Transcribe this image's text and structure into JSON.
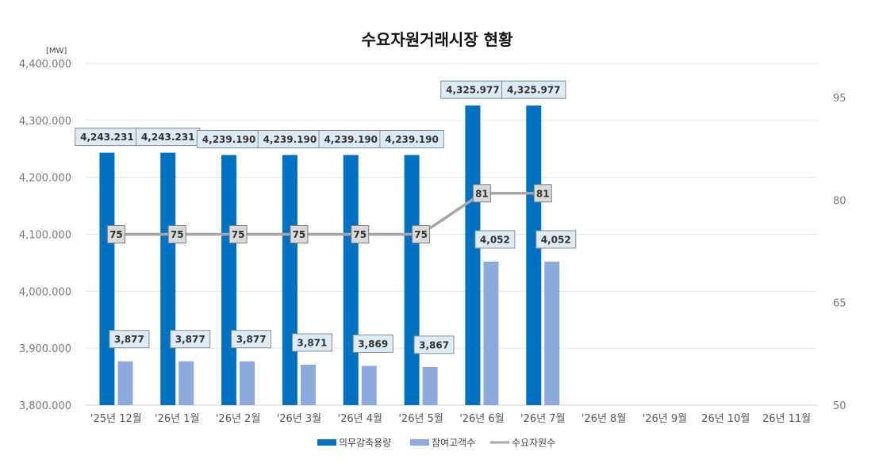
{
  "chart_data": {
    "type": "bar",
    "title": "수요자원거래시장 현황",
    "y_unit": "[MW]",
    "categories": [
      "'25년 12월",
      "'26년 1월",
      "'26년 2월",
      "'26년 3월",
      "'26년 4월",
      "'26년 5월",
      "'26년 6월",
      "'26년 7월",
      "'26년 8월",
      "'26년 9월",
      "26년 10월",
      "26년 11월"
    ],
    "ylim": [
      3800,
      4400
    ],
    "yticks": [
      3800,
      3900,
      4000,
      4100,
      4200,
      4300,
      4400
    ],
    "ytick_labels": [
      "3,800.000",
      "3,900.000",
      "4,000.000",
      "4,100.000",
      "4,200.000",
      "4,300.000",
      "4,400.000"
    ],
    "y2lim": [
      50,
      100
    ],
    "y2ticks": [
      50,
      65,
      80,
      95
    ],
    "y2tick_labels": [
      "50",
      "65",
      "80",
      "95"
    ],
    "grid": true,
    "legend_position": "bottom",
    "series": [
      {
        "name": "의무감축용량",
        "kind": "bar",
        "axis": "left",
        "color": "#0070C0",
        "values": [
          4243.231,
          4243.231,
          4239.19,
          4239.19,
          4239.19,
          4239.19,
          4325.977,
          4325.977,
          null,
          null,
          null,
          null
        ],
        "labels": [
          "4,243.231",
          "4,243.231",
          "4,239.190",
          "4,239.190",
          "4,239.190",
          "4,239.190",
          "4,325.977",
          "4,325.977",
          "",
          "",
          "",
          ""
        ]
      },
      {
        "name": "참여고객수",
        "kind": "bar",
        "axis": "left",
        "color": "#8EA9DB",
        "values": [
          3877,
          3877,
          3877,
          3871,
          3869,
          3867,
          4052,
          4052,
          null,
          null,
          null,
          null
        ],
        "labels": [
          "3,877",
          "3,877",
          "3,877",
          "3,871",
          "3,869",
          "3,867",
          "4,052",
          "4,052",
          "",
          "",
          "",
          ""
        ]
      },
      {
        "name": "수요자원수",
        "kind": "line",
        "axis": "right",
        "color": "#A6A6A6",
        "values": [
          75,
          75,
          75,
          75,
          75,
          75,
          81,
          81,
          null,
          null,
          null,
          null
        ],
        "labels": [
          "75",
          "75",
          "75",
          "75",
          "75",
          "75",
          "81",
          "81",
          "",
          "",
          "",
          ""
        ]
      }
    ]
  }
}
